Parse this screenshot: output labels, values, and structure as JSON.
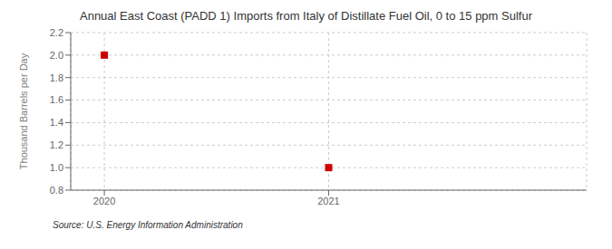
{
  "chart_data": {
    "type": "scatter",
    "title": "Annual East Coast (PADD 1) Imports from Italy of Distillate Fuel Oil, 0 to 15 ppm Sulfur",
    "ylabel": "Thousand Barrels per Day",
    "annotation": "Source: U.S. Energy Information Administration",
    "x": [
      2020,
      2021
    ],
    "values": [
      2.0,
      1.0
    ],
    "color": "#cc0000",
    "marker": "square",
    "xlim": [
      2019.85,
      2022.15
    ],
    "xticks": [
      2020,
      2021
    ],
    "ylim": [
      0.8,
      2.2
    ],
    "yticks": [
      0.8,
      {
        "value": 1.0,
        "label": "1.0"
      },
      1.2,
      1.4,
      1.6,
      1.8,
      {
        "value": 2.0,
        "label": "2.0"
      },
      2.2
    ],
    "grid": true
  }
}
